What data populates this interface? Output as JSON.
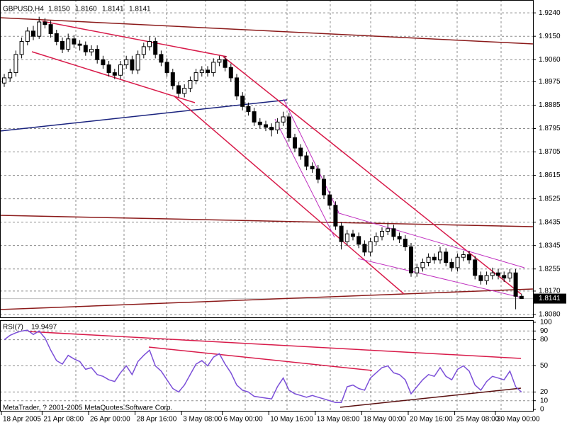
{
  "chart_data": [
    {
      "type": "candlestick",
      "symbol": "GBPUSD,H4",
      "last_bar_labels": [
        "1.8150",
        "1.8160",
        "1.8141",
        "1.8141"
      ],
      "open": [
        1.897,
        1.899,
        1.901,
        1.908,
        1.913,
        1.917,
        1.915,
        1.9205,
        1.9195,
        1.916,
        1.913,
        1.91,
        1.914,
        1.912,
        1.9115,
        1.909,
        1.91,
        1.906,
        1.904,
        1.901,
        1.9,
        1.904,
        1.906,
        1.902,
        1.908,
        1.911,
        1.913,
        1.908,
        1.905,
        1.901,
        1.896,
        1.893,
        1.895,
        1.898,
        1.901,
        1.902,
        1.901,
        1.905,
        1.906,
        1.903,
        1.899,
        1.892,
        1.888,
        1.886,
        1.882,
        1.881,
        1.88,
        1.879,
        1.882,
        1.884,
        1.876,
        1.872,
        1.869,
        1.865,
        1.864,
        1.86,
        1.854,
        1.85,
        1.842,
        1.836,
        1.839,
        1.838,
        1.835,
        1.832,
        1.836,
        1.838,
        1.84,
        1.841,
        1.838,
        1.837,
        1.834,
        1.824,
        1.826,
        1.828,
        1.83,
        1.829,
        1.832,
        1.828,
        1.826,
        1.83,
        1.831,
        1.829,
        1.823,
        1.821,
        1.823,
        1.824,
        1.823,
        1.822,
        1.824,
        1.815
      ],
      "high": [
        1.9005,
        1.9025,
        1.9095,
        1.9145,
        1.9185,
        1.919,
        1.9225,
        1.922,
        1.921,
        1.9175,
        1.9145,
        1.916,
        1.9155,
        1.9135,
        1.913,
        1.9115,
        1.9115,
        1.9075,
        1.9055,
        1.9025,
        1.9055,
        1.9075,
        1.9075,
        1.9095,
        1.9125,
        1.915,
        1.9145,
        1.9095,
        1.9065,
        1.9025,
        1.8975,
        1.8965,
        1.8995,
        1.9025,
        1.9035,
        1.9035,
        1.9065,
        1.9075,
        1.9075,
        1.9045,
        1.9005,
        1.8935,
        1.8895,
        1.8875,
        1.8835,
        1.8825,
        1.8815,
        1.8835,
        1.886,
        1.8855,
        1.8775,
        1.8735,
        1.8705,
        1.8665,
        1.8655,
        1.8615,
        1.8555,
        1.8515,
        1.8435,
        1.8405,
        1.8405,
        1.8395,
        1.8365,
        1.8375,
        1.8395,
        1.8415,
        1.843,
        1.8425,
        1.8395,
        1.8385,
        1.8355,
        1.8275,
        1.8295,
        1.8315,
        1.8315,
        1.834,
        1.8335,
        1.8295,
        1.8315,
        1.8325,
        1.8325,
        1.8305,
        1.8245,
        1.8245,
        1.826,
        1.8255,
        1.8245,
        1.8255,
        1.8255,
        1.816
      ],
      "low": [
        1.8955,
        1.8975,
        1.8995,
        1.9065,
        1.9115,
        1.9135,
        1.914,
        1.918,
        1.9145,
        1.9115,
        1.9085,
        1.909,
        1.9105,
        1.9095,
        1.9075,
        1.9075,
        1.9045,
        1.9025,
        1.8995,
        1.8985,
        1.8985,
        1.9025,
        1.9005,
        1.9005,
        1.9065,
        1.9095,
        1.9065,
        1.9035,
        1.8995,
        1.8945,
        1.8915,
        1.8915,
        1.8935,
        1.8965,
        1.8995,
        1.8995,
        1.8995,
        1.9035,
        1.9015,
        1.8975,
        1.8905,
        1.8865,
        1.8845,
        1.8805,
        1.8795,
        1.8785,
        1.8765,
        1.8775,
        1.8805,
        1.8745,
        1.8705,
        1.8675,
        1.8635,
        1.8625,
        1.8585,
        1.8525,
        1.8485,
        1.8405,
        1.833,
        1.8345,
        1.8365,
        1.8335,
        1.8305,
        1.8305,
        1.8345,
        1.8365,
        1.8385,
        1.8365,
        1.8355,
        1.8325,
        1.8225,
        1.8225,
        1.8245,
        1.8265,
        1.8275,
        1.8275,
        1.8265,
        1.8245,
        1.8245,
        1.8285,
        1.8275,
        1.8215,
        1.8195,
        1.8195,
        1.8215,
        1.8215,
        1.8205,
        1.8205,
        1.81,
        1.8141
      ],
      "close": [
        1.899,
        1.901,
        1.908,
        1.913,
        1.917,
        1.915,
        1.9205,
        1.9195,
        1.916,
        1.913,
        1.91,
        1.914,
        1.912,
        1.9115,
        1.909,
        1.91,
        1.906,
        1.904,
        1.901,
        1.9,
        1.904,
        1.906,
        1.902,
        1.908,
        1.911,
        1.913,
        1.908,
        1.905,
        1.901,
        1.896,
        1.893,
        1.895,
        1.898,
        1.901,
        1.902,
        1.901,
        1.905,
        1.906,
        1.903,
        1.899,
        1.892,
        1.888,
        1.886,
        1.882,
        1.881,
        1.88,
        1.879,
        1.882,
        1.884,
        1.876,
        1.872,
        1.869,
        1.865,
        1.864,
        1.86,
        1.854,
        1.85,
        1.842,
        1.836,
        1.839,
        1.838,
        1.835,
        1.832,
        1.836,
        1.838,
        1.84,
        1.841,
        1.838,
        1.837,
        1.834,
        1.824,
        1.826,
        1.828,
        1.83,
        1.829,
        1.832,
        1.828,
        1.826,
        1.83,
        1.831,
        1.829,
        1.823,
        1.821,
        1.823,
        1.824,
        1.823,
        1.822,
        1.824,
        1.815,
        1.8141
      ],
      "ylim": [
        1.8069,
        1.9284
      ],
      "yticks": [
        {
          "value": 1.924,
          "label": "1.9240"
        },
        {
          "value": 1.915,
          "label": "1.9150"
        },
        {
          "value": 1.906,
          "label": "1.9060"
        },
        {
          "value": 1.8975,
          "label": "1.8975"
        },
        {
          "value": 1.8885,
          "label": "1.8885"
        },
        {
          "value": 1.8795,
          "label": "1.8795"
        },
        {
          "value": 1.8705,
          "label": "1.8705"
        },
        {
          "value": 1.8615,
          "label": "1.8615"
        },
        {
          "value": 1.8525,
          "label": "1.8525"
        },
        {
          "value": 1.8435,
          "label": "1.8435"
        },
        {
          "value": 1.8345,
          "label": "1.8345"
        },
        {
          "value": 1.8255,
          "label": "1.8255"
        },
        {
          "value": 1.817,
          "label": "1.8170"
        },
        {
          "value": 1.808,
          "label": "1.8080"
        }
      ],
      "xticks": [
        {
          "value": 0,
          "label": "18 Apr 2005"
        },
        {
          "value": 7,
          "label": "21 Apr 08:00"
        },
        {
          "value": 15,
          "label": "26 Apr 00:00"
        },
        {
          "value": 23,
          "label": "28 Apr 16:00"
        },
        {
          "value": 31,
          "label": "3 May 08:00"
        },
        {
          "value": 38,
          "label": "6 May 00:00"
        },
        {
          "value": 46,
          "label": "10 May 16:00"
        },
        {
          "value": 54,
          "label": "13 May 08:00"
        },
        {
          "value": 62,
          "label": "18 May 00:00"
        },
        {
          "value": 70,
          "label": "20 May 16:00"
        },
        {
          "value": 78,
          "label": "25 May 08:00"
        },
        {
          "value": 85,
          "label": "30 May 00:00"
        }
      ],
      "grid": true,
      "up_color": "#ffffff",
      "down_color": "#000000"
    },
    {
      "type": "line",
      "name": "RSI(7)",
      "color": "#7b4fd8",
      "values": [
        80,
        85,
        88,
        90,
        91,
        86,
        90,
        82,
        68,
        56,
        52,
        62,
        58,
        55,
        46,
        48,
        40,
        38,
        34,
        32,
        42,
        50,
        40,
        55,
        62,
        68,
        50,
        44,
        34,
        24,
        20,
        28,
        40,
        52,
        56,
        50,
        60,
        64,
        52,
        42,
        28,
        22,
        20,
        15,
        14,
        13,
        12,
        26,
        36,
        22,
        18,
        16,
        14,
        16,
        14,
        12,
        10,
        8,
        8,
        26,
        28,
        24,
        22,
        36,
        42,
        48,
        50,
        42,
        40,
        34,
        18,
        26,
        34,
        40,
        38,
        48,
        38,
        34,
        46,
        50,
        44,
        28,
        22,
        32,
        38,
        36,
        34,
        44,
        26,
        19.9497
      ],
      "ylim": [
        0,
        100
      ],
      "yticks": [
        100,
        90,
        80,
        50,
        20,
        10,
        0
      ],
      "grid": true
    }
  ],
  "watermark": "MetaTrader, ? 2001-2005 MetaQuotes Software Corp."
}
